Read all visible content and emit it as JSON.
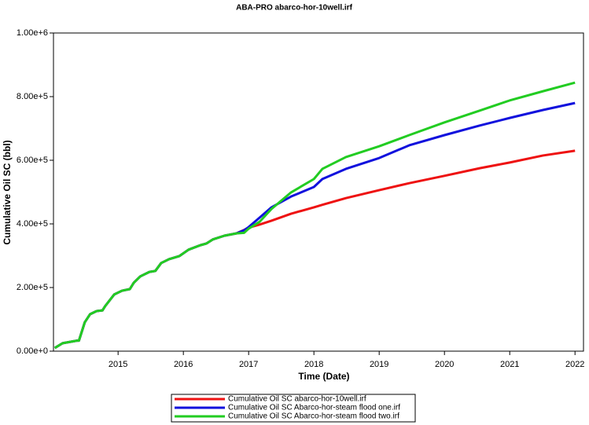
{
  "chart_data": {
    "type": "line",
    "title": "ABA-PRO abarco-hor-10well.irf",
    "x_label": "Time (Date)",
    "y_label": "Cumulative Oil SC (bbl)",
    "x": [
      2014.03,
      2014.15,
      2014.37,
      2014.4,
      2014.49,
      2014.57,
      2014.67,
      2014.76,
      2014.8,
      2014.94,
      2015.06,
      2015.18,
      2015.24,
      2015.34,
      2015.48,
      2015.57,
      2015.66,
      2015.78,
      2015.94,
      2016.08,
      2016.26,
      2016.35,
      2016.45,
      2016.63,
      2016.81,
      2016.93,
      2017.0,
      2017.17,
      2017.35,
      2017.65,
      2018.0,
      2018.13,
      2018.49,
      2019.0,
      2019.46,
      2020.0,
      2020.54,
      2021.0,
      2021.51,
      2022.0
    ],
    "series": [
      {
        "name": "Cumulative Oil SC abarco-hor-10well.irf",
        "color": "#ee1111",
        "values": [
          10000,
          25000,
          33000,
          33000,
          91000,
          116000,
          126000,
          128000,
          141000,
          178000,
          190000,
          195000,
          215000,
          235000,
          249000,
          252000,
          277000,
          289000,
          299000,
          319000,
          333000,
          338000,
          351000,
          363000,
          370000,
          381000,
          388000,
          398000,
          410000,
          432000,
          452000,
          460000,
          481000,
          506000,
          528000,
          551000,
          575000,
          593000,
          615000,
          630000
        ]
      },
      {
        "name": "Cumulative Oil SC Abarco-hor-steam flood one.irf",
        "color": "#1111dd",
        "values": [
          10000,
          25000,
          33000,
          33000,
          91000,
          116000,
          126000,
          128000,
          141000,
          178000,
          190000,
          195000,
          215000,
          235000,
          249000,
          252000,
          277000,
          289000,
          299000,
          319000,
          333000,
          338000,
          351000,
          363000,
          370000,
          380000,
          390000,
          420000,
          452000,
          486000,
          516000,
          541000,
          573000,
          607000,
          647000,
          679000,
          709000,
          733000,
          758000,
          780000
        ]
      },
      {
        "name": "Cumulative Oil SC Abarco-hor-steam flood two.irf",
        "color": "#22cc22",
        "values": [
          10000,
          25000,
          33000,
          33000,
          91000,
          116000,
          126000,
          128000,
          141000,
          178000,
          190000,
          195000,
          215000,
          235000,
          249000,
          252000,
          277000,
          289000,
          299000,
          319000,
          333000,
          338000,
          351000,
          363000,
          370000,
          372000,
          385000,
          407000,
          447000,
          499000,
          541000,
          573000,
          610000,
          644000,
          679000,
          719000,
          756000,
          788000,
          817000,
          844000
        ]
      }
    ],
    "xlim": [
      2014.01,
      2022.13
    ],
    "xticks": [
      2015,
      2016,
      2017,
      2018,
      2019,
      2020,
      2021,
      2022
    ],
    "ylim": [
      0,
      1000000
    ],
    "yticks": [
      {
        "value": 0,
        "label": "0.00e+0"
      },
      {
        "value": 200000,
        "label": "2.00e+5"
      },
      {
        "value": 400000,
        "label": "4.00e+5"
      },
      {
        "value": 600000,
        "label": "6.00e+5"
      },
      {
        "value": 800000,
        "label": "8.00e+5"
      },
      {
        "value": 1000000,
        "label": "1.00e+6"
      }
    ],
    "grid": false,
    "legend": "bottom"
  }
}
